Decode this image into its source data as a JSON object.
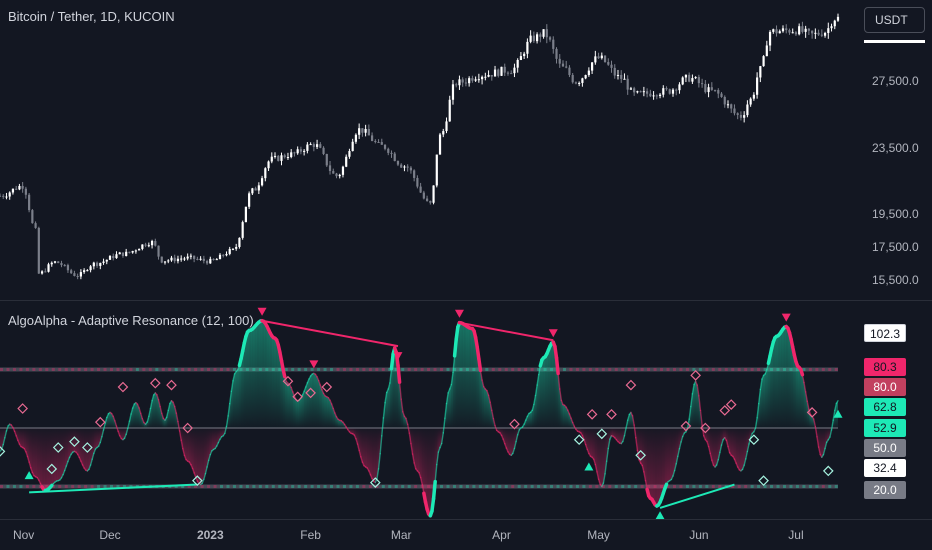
{
  "header": {
    "symbol_title": "Bitcoin / Tether, 1D, KUCOIN",
    "currency_button": "USDT"
  },
  "indicator": {
    "title": "AlgoAlpha - Adaptive Resonance (12, 100)"
  },
  "colors": {
    "background": "#131722",
    "candle_up": "#ffffff",
    "candle_down": "#7b7f8a",
    "bull": "#1de9b6",
    "bear": "#f0266b",
    "grid": "#2a2e39"
  },
  "chart_data": [
    {
      "type": "candlestick",
      "title": "Bitcoin / Tether, 1D, KUCOIN",
      "x_ticks": [
        "Nov",
        "Dec",
        "2023",
        "Feb",
        "Mar",
        "Apr",
        "May",
        "Jun",
        "Jul"
      ],
      "y_ticks": [
        "27,500.0",
        "23,500.0",
        "19,500.0",
        "17,500.0",
        "15,500.0"
      ],
      "y_range": [
        14800,
        31200
      ],
      "x_range_days": [
        "2022-10-28",
        "2023-07-14"
      ],
      "close_anchors": [
        [
          "2022-10-28",
          20600
        ],
        [
          "2022-11-04",
          21200
        ],
        [
          "2022-11-08",
          18500
        ],
        [
          "2022-11-09",
          15900
        ],
        [
          "2022-11-14",
          16600
        ],
        [
          "2022-11-21",
          15800
        ],
        [
          "2022-11-26",
          16500
        ],
        [
          "2022-12-05",
          17100
        ],
        [
          "2022-12-14",
          17800
        ],
        [
          "2022-12-17",
          16700
        ],
        [
          "2022-12-25",
          16850
        ],
        [
          "2023-01-01",
          16650
        ],
        [
          "2023-01-08",
          17300
        ],
        [
          "2023-01-14",
          20900
        ],
        [
          "2023-01-20",
          22800
        ],
        [
          "2023-01-26",
          23100
        ],
        [
          "2023-02-02",
          23700
        ],
        [
          "2023-02-09",
          21800
        ],
        [
          "2023-02-16",
          24600
        ],
        [
          "2023-02-23",
          23600
        ],
        [
          "2023-03-02",
          22400
        ],
        [
          "2023-03-10",
          20100
        ],
        [
          "2023-03-13",
          24200
        ],
        [
          "2023-03-18",
          27400
        ],
        [
          "2023-03-26",
          27900
        ],
        [
          "2023-04-04",
          28200
        ],
        [
          "2023-04-11",
          30100
        ],
        [
          "2023-04-14",
          30400
        ],
        [
          "2023-04-20",
          28300
        ],
        [
          "2023-04-24",
          27500
        ],
        [
          "2023-05-01",
          28900
        ],
        [
          "2023-05-08",
          27700
        ],
        [
          "2023-05-12",
          26700
        ],
        [
          "2023-05-22",
          26900
        ],
        [
          "2023-05-29",
          27700
        ],
        [
          "2023-06-05",
          26900
        ],
        [
          "2023-06-14",
          25400
        ],
        [
          "2023-06-17",
          26400
        ],
        [
          "2023-06-20",
          28200
        ],
        [
          "2023-06-23",
          30500
        ],
        [
          "2023-07-01",
          30600
        ],
        [
          "2023-07-06",
          30300
        ],
        [
          "2023-07-10",
          30500
        ],
        [
          "2023-07-13",
          31300
        ]
      ]
    },
    {
      "type": "line",
      "title": "AlgoAlpha - Adaptive Resonance (12, 100)",
      "y_range": [
        10,
        110
      ],
      "levels": {
        "upper": 80.0,
        "mid": 50.0,
        "lower": 20.0
      },
      "value_labels": [
        {
          "text": "102.3",
          "kind": "neutral-light"
        },
        {
          "text": "80.3",
          "kind": "bear"
        },
        {
          "text": "80.0",
          "kind": "bear-muted"
        },
        {
          "text": "62.8",
          "kind": "bull"
        },
        {
          "text": "52.9",
          "kind": "bull"
        },
        {
          "text": "50.0",
          "kind": "neutral"
        },
        {
          "text": "32.4",
          "kind": "neutral-light"
        },
        {
          "text": "20.0",
          "kind": "neutral"
        }
      ],
      "series_anchors": [
        [
          "2022-10-28",
          38
        ],
        [
          "2022-10-31",
          52
        ],
        [
          "2022-11-04",
          40
        ],
        [
          "2022-11-08",
          25
        ],
        [
          "2022-11-11",
          18
        ],
        [
          "2022-11-15",
          23
        ],
        [
          "2022-11-20",
          38
        ],
        [
          "2022-11-24",
          28
        ],
        [
          "2022-11-27",
          40
        ],
        [
          "2022-12-01",
          58
        ],
        [
          "2022-12-05",
          44
        ],
        [
          "2022-12-09",
          63
        ],
        [
          "2022-12-12",
          52
        ],
        [
          "2022-12-15",
          68
        ],
        [
          "2022-12-18",
          54
        ],
        [
          "2022-12-20",
          64
        ],
        [
          "2022-12-25",
          33
        ],
        [
          "2022-12-29",
          21
        ],
        [
          "2023-01-02",
          39
        ],
        [
          "2023-01-05",
          46
        ],
        [
          "2023-01-09",
          79
        ],
        [
          "2023-01-13",
          100
        ],
        [
          "2023-01-17",
          105
        ],
        [
          "2023-01-21",
          96
        ],
        [
          "2023-01-25",
          73
        ],
        [
          "2023-01-28",
          64
        ],
        [
          "2023-02-02",
          78
        ],
        [
          "2023-02-06",
          66
        ],
        [
          "2023-02-10",
          54
        ],
        [
          "2023-02-14",
          47
        ],
        [
          "2023-02-18",
          30
        ],
        [
          "2023-02-21",
          22
        ],
        [
          "2023-02-25",
          70
        ],
        [
          "2023-02-27",
          91
        ],
        [
          "2023-03-02",
          56
        ],
        [
          "2023-03-06",
          28
        ],
        [
          "2023-03-10",
          5
        ],
        [
          "2023-03-13",
          40
        ],
        [
          "2023-03-16",
          70
        ],
        [
          "2023-03-19",
          104
        ],
        [
          "2023-03-23",
          101
        ],
        [
          "2023-03-27",
          70
        ],
        [
          "2023-03-31",
          48
        ],
        [
          "2023-04-04",
          36
        ],
        [
          "2023-04-07",
          50
        ],
        [
          "2023-04-10",
          58
        ],
        [
          "2023-04-14",
          86
        ],
        [
          "2023-04-17",
          94
        ],
        [
          "2023-04-20",
          62
        ],
        [
          "2023-04-25",
          48
        ],
        [
          "2023-04-29",
          35
        ],
        [
          "2023-05-02",
          20
        ],
        [
          "2023-05-05",
          46
        ],
        [
          "2023-05-08",
          42
        ],
        [
          "2023-05-11",
          58
        ],
        [
          "2023-05-14",
          32
        ],
        [
          "2023-05-17",
          14
        ],
        [
          "2023-05-19",
          10
        ],
        [
          "2023-05-23",
          23
        ],
        [
          "2023-05-28",
          48
        ],
        [
          "2023-05-31",
          74
        ],
        [
          "2023-06-03",
          44
        ],
        [
          "2023-06-06",
          30
        ],
        [
          "2023-06-09",
          45
        ],
        [
          "2023-06-11",
          36
        ],
        [
          "2023-06-14",
          28
        ],
        [
          "2023-06-18",
          48
        ],
        [
          "2023-06-21",
          77
        ],
        [
          "2023-06-25",
          97
        ],
        [
          "2023-06-28",
          102
        ],
        [
          "2023-07-02",
          81
        ],
        [
          "2023-07-06",
          56
        ],
        [
          "2023-07-09",
          35
        ],
        [
          "2023-07-11",
          44
        ],
        [
          "2023-07-14",
          64
        ]
      ],
      "trend_lines": [
        {
          "from": [
            "2022-11-06",
            17
          ],
          "to": [
            "2022-12-28",
            21
          ],
          "kind": "bull"
        },
        {
          "from": [
            "2023-01-17",
            105
          ],
          "to": [
            "2023-02-28",
            92
          ],
          "kind": "bear"
        },
        {
          "from": [
            "2023-03-19",
            104
          ],
          "to": [
            "2023-04-17",
            95
          ],
          "kind": "bear"
        },
        {
          "from": [
            "2023-05-20",
            9
          ],
          "to": [
            "2023-06-12",
            21
          ],
          "kind": "bull"
        }
      ],
      "signals_down": [
        "2023-01-17",
        "2023-02-02",
        "2023-02-28",
        "2023-03-19",
        "2023-04-17",
        "2023-06-28"
      ],
      "signals_up": [
        "2022-11-06",
        "2023-03-10",
        "2023-04-28",
        "2023-05-20",
        "2023-07-14"
      ],
      "diamonds": [
        [
          "2022-10-28",
          38
        ],
        [
          "2022-11-04",
          60
        ],
        [
          "2022-11-13",
          29
        ],
        [
          "2022-11-15",
          40
        ],
        [
          "2022-11-20",
          43
        ],
        [
          "2022-11-24",
          40
        ],
        [
          "2022-11-28",
          53
        ],
        [
          "2022-12-05",
          71
        ],
        [
          "2022-12-15",
          73
        ],
        [
          "2022-12-20",
          72
        ],
        [
          "2022-12-25",
          50
        ],
        [
          "2022-12-28",
          23
        ],
        [
          "2023-01-25",
          74
        ],
        [
          "2023-01-28",
          66
        ],
        [
          "2023-02-01",
          68
        ],
        [
          "2023-02-06",
          71
        ],
        [
          "2023-02-21",
          22
        ],
        [
          "2023-04-05",
          52
        ],
        [
          "2023-04-25",
          44
        ],
        [
          "2023-04-29",
          57
        ],
        [
          "2023-05-02",
          47
        ],
        [
          "2023-05-05",
          57
        ],
        [
          "2023-05-11",
          72
        ],
        [
          "2023-05-14",
          36
        ],
        [
          "2023-05-28",
          51
        ],
        [
          "2023-05-31",
          77
        ],
        [
          "2023-06-03",
          50
        ],
        [
          "2023-06-09",
          59
        ],
        [
          "2023-06-11",
          62
        ],
        [
          "2023-06-18",
          44
        ],
        [
          "2023-06-21",
          23
        ],
        [
          "2023-07-06",
          58
        ],
        [
          "2023-07-11",
          28
        ]
      ]
    }
  ]
}
